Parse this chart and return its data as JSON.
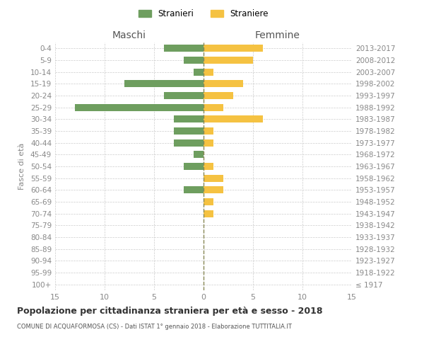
{
  "age_groups": [
    "100+",
    "95-99",
    "90-94",
    "85-89",
    "80-84",
    "75-79",
    "70-74",
    "65-69",
    "60-64",
    "55-59",
    "50-54",
    "45-49",
    "40-44",
    "35-39",
    "30-34",
    "25-29",
    "20-24",
    "15-19",
    "10-14",
    "5-9",
    "0-4"
  ],
  "birth_years": [
    "≤ 1917",
    "1918-1922",
    "1923-1927",
    "1928-1932",
    "1933-1937",
    "1938-1942",
    "1943-1947",
    "1948-1952",
    "1953-1957",
    "1958-1962",
    "1963-1967",
    "1968-1972",
    "1973-1977",
    "1978-1982",
    "1983-1987",
    "1988-1992",
    "1993-1997",
    "1998-2002",
    "2003-2007",
    "2008-2012",
    "2013-2017"
  ],
  "males": [
    0,
    0,
    0,
    0,
    0,
    0,
    0,
    0,
    2,
    0,
    2,
    1,
    3,
    3,
    3,
    13,
    4,
    8,
    1,
    2,
    4
  ],
  "females": [
    0,
    0,
    0,
    0,
    0,
    0,
    1,
    1,
    2,
    2,
    1,
    0,
    1,
    1,
    6,
    2,
    3,
    4,
    1,
    5,
    6
  ],
  "male_color": "#6e9e5f",
  "female_color": "#f5c242",
  "center_line_color": "#888855",
  "title": "Popolazione per cittadinanza straniera per età e sesso - 2018",
  "subtitle": "COMUNE DI ACQUAFORMOSA (CS) - Dati ISTAT 1° gennaio 2018 - Elaborazione TUTTITALIA.IT",
  "ylabel_left": "Fasce di età",
  "xlabel_left": "Maschi",
  "xlabel_right": "Femmine",
  "legend_male": "Stranieri",
  "legend_female": "Straniere",
  "xlim": 15,
  "grid_color": "#cccccc",
  "bg_color": "#ffffff",
  "tick_color": "#888888"
}
